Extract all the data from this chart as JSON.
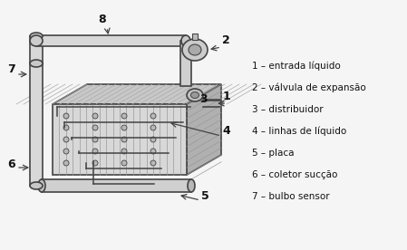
{
  "background_color": "#f0f0f0",
  "legend_items": [
    "1 – entrada líquido",
    "2 – válvula de expansão",
    "3 – distribuidor",
    "4 – linhas de líquido",
    "5 – placa",
    "6 – coletor sucção",
    "7 – bulbo sensor"
  ],
  "text_color": "#111111",
  "font_size": 7.5,
  "figsize": [
    4.49,
    2.76
  ],
  "dpi": 100,
  "line_color": "#444444",
  "label_color": "#111111"
}
